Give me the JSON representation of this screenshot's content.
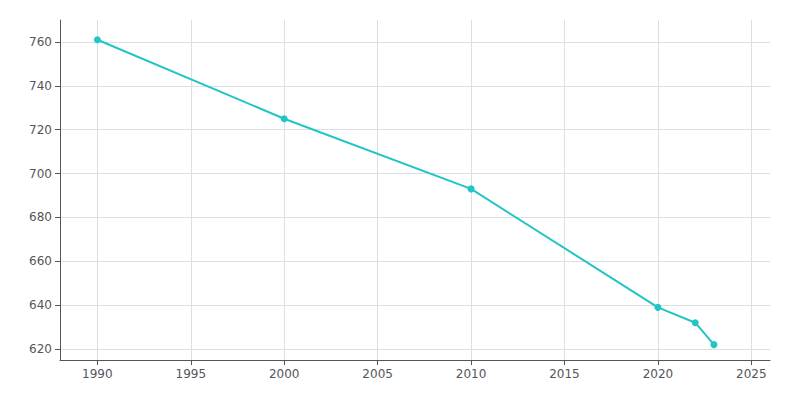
{
  "chart_data": {
    "type": "line",
    "x": [
      1990,
      2000,
      2010,
      2020,
      2022,
      2023
    ],
    "values": [
      761,
      725,
      693,
      639,
      632,
      622
    ],
    "color": "#22C4C4",
    "marker": "circle",
    "xlim": [
      1988,
      2026
    ],
    "ylim": [
      615,
      770
    ],
    "xticks": [
      1990,
      1995,
      2000,
      2005,
      2010,
      2015,
      2020,
      2025
    ],
    "yticks": [
      620,
      640,
      660,
      680,
      700,
      720,
      740,
      760
    ],
    "grid": true
  }
}
